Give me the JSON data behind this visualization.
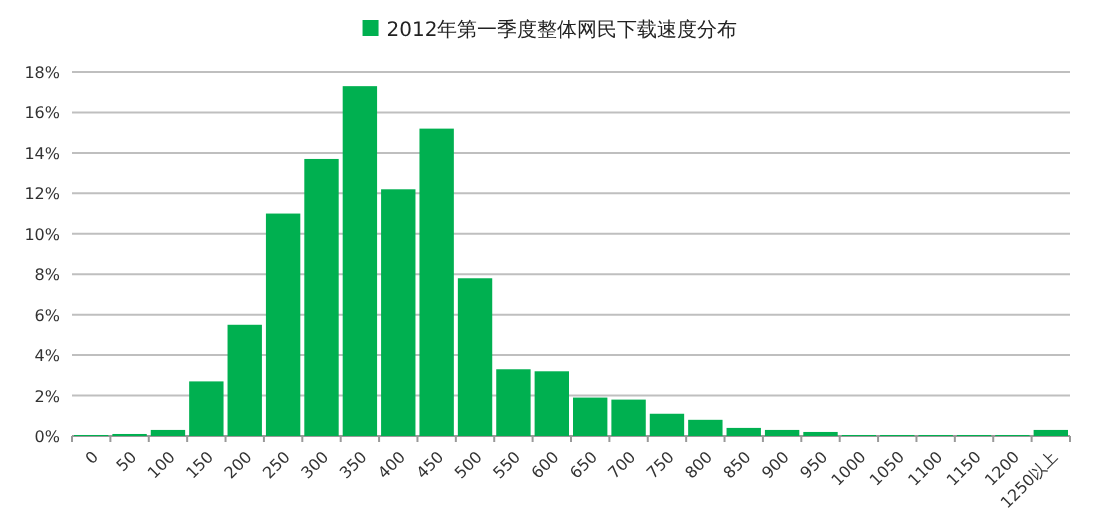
{
  "chart_data": {
    "type": "bar",
    "categories": [
      "0",
      "50",
      "100",
      "150",
      "200",
      "250",
      "300",
      "350",
      "400",
      "450",
      "500",
      "550",
      "600",
      "650",
      "700",
      "750",
      "800",
      "850",
      "900",
      "950",
      "1000",
      "1050",
      "1100",
      "1150",
      "1200",
      "1250以上"
    ],
    "series": [
      {
        "name": "2012年第一季度整体网民下载速度分布",
        "color": "#00b050",
        "values": [
          0.05,
          0.1,
          0.3,
          2.7,
          5.5,
          11.0,
          13.7,
          17.3,
          12.2,
          15.2,
          7.8,
          3.3,
          3.2,
          1.9,
          1.8,
          1.1,
          0.8,
          0.4,
          0.3,
          0.2,
          0.05,
          0.05,
          0.05,
          0.05,
          0.05,
          0.3
        ]
      }
    ],
    "ylim": [
      0,
      18
    ],
    "yticks": [
      {
        "value": 0,
        "label": "0%"
      },
      {
        "value": 2,
        "label": "2%"
      },
      {
        "value": 4,
        "label": "4%"
      },
      {
        "value": 6,
        "label": "6%"
      },
      {
        "value": 8,
        "label": "8%"
      },
      {
        "value": 10,
        "label": "10%"
      },
      {
        "value": 12,
        "label": "12%"
      },
      {
        "value": 14,
        "label": "14%"
      },
      {
        "value": 16,
        "label": "16%"
      },
      {
        "value": 18,
        "label": "18%"
      }
    ],
    "grid": "y",
    "legend": "top"
  }
}
